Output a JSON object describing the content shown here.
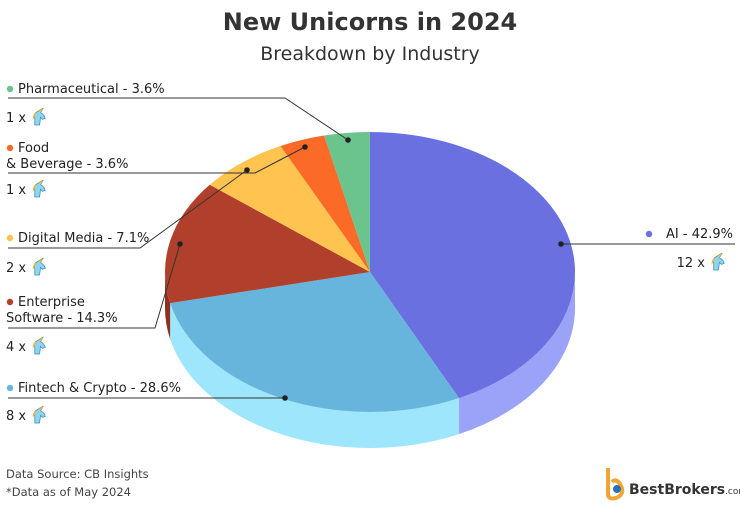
{
  "chart_data": {
    "type": "pie",
    "title": "New Unicorns in 2024",
    "subtitle": "Breakdown by Industry",
    "values": [
      42.9,
      28.6,
      14.3,
      7.1,
      3.6,
      3.6
    ],
    "value_labels": [
      [
        "AI - 42.9%"
      ],
      [
        "Fintech & Crypto - 28.6%"
      ],
      [
        "Enterprise",
        "Software - 14.3%"
      ],
      [
        "Digital Media - 7.1%"
      ],
      [
        "Food",
        "& Beverage - 3.6%"
      ],
      [
        "Pharmaceutical - 3.6%"
      ]
    ],
    "count_labels": [
      "12 x",
      "8 x",
      "4 x",
      "2 x",
      "1 x",
      "1 x"
    ],
    "colors": [
      "#6a70df",
      "#67b5dc",
      "#b0402b",
      "#fec44f",
      "#fb6a26",
      "#6cc48d"
    ],
    "side_colors": [
      "#9aa3f8",
      "#9de6fb",
      "#8e3020",
      "#d9a23a",
      "#d4561c",
      "#55a673"
    ],
    "source": "Data Source: CB Insights",
    "note": "*Data as of May 2024",
    "brand": "BestBrokers",
    "brand_suffix": ".com"
  }
}
